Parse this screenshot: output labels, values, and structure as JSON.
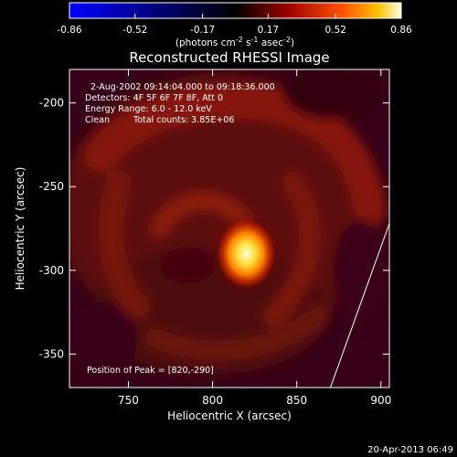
{
  "colorbar": {
    "tick_labels": [
      "-0.86",
      "-0.52",
      "-0.17",
      "0.17",
      "0.52",
      "0.86"
    ],
    "range": [
      -0.86,
      0.86
    ],
    "unit_label": "(photons cm",
    "unit_sup1": "-2",
    "unit_mid": " s",
    "unit_sup2": "-1",
    "unit_tail": " asec",
    "unit_sup3": "-2",
    "unit_close": ")"
  },
  "chart_data": {
    "type": "heatmap",
    "title": "Reconstructed RHESSI Image",
    "xlabel": "Heliocentric X (arcsec)",
    "ylabel": "Heliocentric Y (arcsec)",
    "xlim": [
      715,
      905
    ],
    "ylim": [
      -370,
      -180
    ],
    "x_ticks": [
      750,
      800,
      850,
      900
    ],
    "y_ticks": [
      -200,
      -250,
      -300,
      -350
    ],
    "x_tick_labels": [
      "750",
      "800",
      "850",
      "900"
    ],
    "y_tick_labels": [
      "-200",
      "-250",
      "-300",
      "-350"
    ],
    "peak": {
      "x": 820,
      "y": -290,
      "value": 0.86
    },
    "limb_line": [
      [
        870,
        -370
      ],
      [
        905,
        -272
      ]
    ],
    "annotations": {
      "time": "2-Aug-2002 09:14:04.000 to 09:18:36.000",
      "detectors": "Detectors: 4F 5F 6F 7F 8F, Att 0",
      "energy": "Energy Range: 6.0 - 12.0 keV",
      "clean_label": "Clean",
      "counts": "Total counts: 3.85E+06",
      "peak_position": "Position of Peak = [820,-290]"
    }
  },
  "footer": {
    "timestamp": "20-Apr-2013 06:49"
  }
}
